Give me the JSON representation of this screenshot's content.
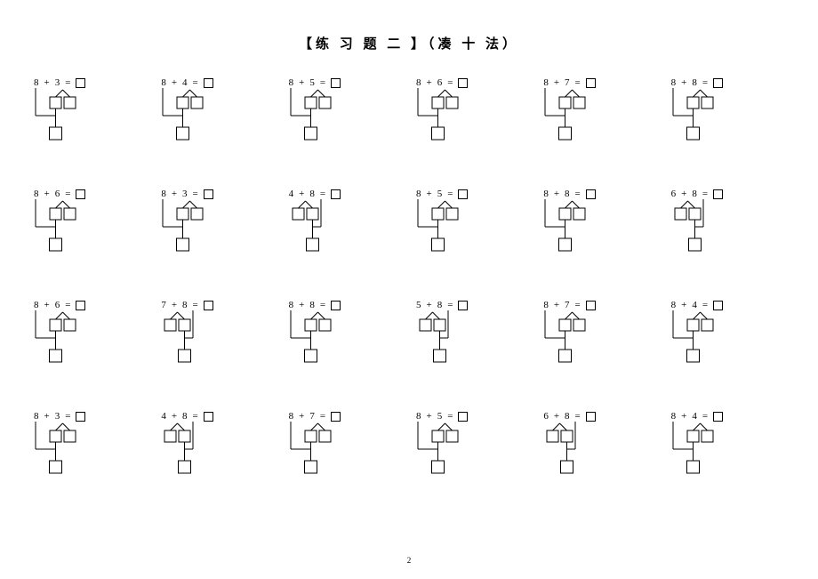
{
  "title": "【练 习 题 二 】（凑 十 法）",
  "page_number": "2",
  "diagram": {
    "box_size": 13,
    "result_box_size": 14,
    "colors": {
      "line": "#000000",
      "box_fill": "#ffffff",
      "box_stroke": "#000000",
      "bg": "#ffffff"
    }
  },
  "problems": [
    [
      {
        "a": "8",
        "b": "3",
        "split": "left"
      },
      {
        "a": "8",
        "b": "4",
        "split": "left"
      },
      {
        "a": "8",
        "b": "5",
        "split": "left"
      },
      {
        "a": "8",
        "b": "6",
        "split": "left"
      },
      {
        "a": "8",
        "b": "7",
        "split": "left"
      },
      {
        "a": "8",
        "b": "8",
        "split": "left"
      }
    ],
    [
      {
        "a": "8",
        "b": "6",
        "split": "left"
      },
      {
        "a": "8",
        "b": "3",
        "split": "left"
      },
      {
        "a": "4",
        "b": "8",
        "split": "right"
      },
      {
        "a": "8",
        "b": "5",
        "split": "left"
      },
      {
        "a": "8",
        "b": "8",
        "split": "left"
      },
      {
        "a": "6",
        "b": "8",
        "split": "right"
      }
    ],
    [
      {
        "a": "8",
        "b": "6",
        "split": "left"
      },
      {
        "a": "7",
        "b": "8",
        "split": "right"
      },
      {
        "a": "8",
        "b": "8",
        "split": "left"
      },
      {
        "a": "5",
        "b": "8",
        "split": "right"
      },
      {
        "a": "8",
        "b": "7",
        "split": "left"
      },
      {
        "a": "8",
        "b": "4",
        "split": "left"
      }
    ],
    [
      {
        "a": "8",
        "b": "3",
        "split": "left"
      },
      {
        "a": "4",
        "b": "8",
        "split": "right"
      },
      {
        "a": "8",
        "b": "7",
        "split": "left"
      },
      {
        "a": "8",
        "b": "5",
        "split": "left"
      },
      {
        "a": "6",
        "b": "8",
        "split": "right"
      },
      {
        "a": "8",
        "b": "4",
        "split": "left"
      }
    ]
  ]
}
